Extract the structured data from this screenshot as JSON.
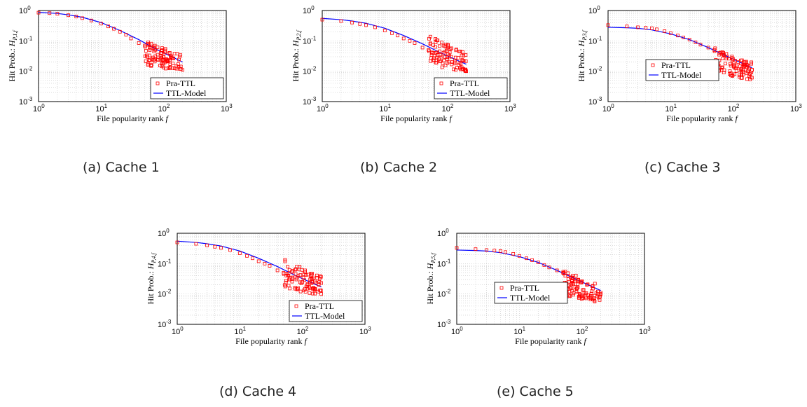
{
  "common": {
    "xlabel": "File popularity rank",
    "xlabel_var": "f",
    "ylabel_prefix": "Hit Prob.:",
    "ylabel_var": "H",
    "x_ticks": [
      {
        "base": "10",
        "exp": "0"
      },
      {
        "base": "10",
        "exp": "1"
      },
      {
        "base": "10",
        "exp": "2"
      },
      {
        "base": "10",
        "exp": "3"
      }
    ],
    "y_ticks": [
      {
        "base": "10",
        "exp": "0"
      },
      {
        "base": "10",
        "exp": "-1"
      },
      {
        "base": "10",
        "exp": "-2"
      },
      {
        "base": "10",
        "exp": "-3"
      }
    ],
    "legend": [
      "Pra-TTL",
      "TTL-Model"
    ],
    "colors": {
      "sim": "#ff0000",
      "model": "#0000ff",
      "grid": "#b8b8b8"
    }
  },
  "captions": [
    "(a) Cache 1",
    "(b) Cache 2",
    "(c) Cache 3",
    "(d) Cache 4",
    "(e) Cache 5"
  ],
  "chart_data": [
    {
      "type": "scatter",
      "ylabel_sub": "P,1,f",
      "xlim": [
        1,
        1000
      ],
      "ylim": [
        0.001,
        1
      ],
      "xscale": "log",
      "yscale": "log",
      "grid": true,
      "legend_position": "bottom-right",
      "model": {
        "x": [
          1,
          2,
          3,
          5,
          10,
          20,
          40,
          70,
          100,
          150,
          200
        ],
        "y": [
          0.87,
          0.8,
          0.72,
          0.6,
          0.4,
          0.22,
          0.11,
          0.058,
          0.04,
          0.027,
          0.02
        ]
      },
      "sim": {
        "x": [
          1,
          1.5,
          2,
          3,
          4,
          5,
          7,
          10,
          13,
          16,
          20,
          25,
          30,
          40,
          50,
          60,
          70,
          80,
          90,
          100,
          110,
          120,
          140,
          160,
          180,
          200
        ],
        "y": [
          0.85,
          0.82,
          0.78,
          0.7,
          0.63,
          0.56,
          0.47,
          0.37,
          0.3,
          0.25,
          0.2,
          0.16,
          0.12,
          0.085,
          0.07,
          0.05,
          0.045,
          0.035,
          0.04,
          0.03,
          0.025,
          0.022,
          0.018,
          0.015,
          0.012,
          0.011
        ]
      },
      "scatter": {
        "x0": 50,
        "x1": 200,
        "y_min": 0.009,
        "y_max": 0.1
      }
    },
    {
      "type": "scatter",
      "ylabel_sub": "P,2,f",
      "xlim": [
        1,
        1000
      ],
      "ylim": [
        0.001,
        1
      ],
      "xscale": "log",
      "yscale": "log",
      "grid": true,
      "legend_position": "bottom-right",
      "model": {
        "x": [
          1,
          2,
          3,
          5,
          10,
          20,
          40,
          70,
          100,
          150,
          200
        ],
        "y": [
          0.55,
          0.5,
          0.45,
          0.38,
          0.26,
          0.15,
          0.08,
          0.045,
          0.032,
          0.022,
          0.017
        ]
      },
      "sim": {
        "x": [
          1,
          2,
          3,
          4,
          5,
          7,
          10,
          13,
          16,
          20,
          25,
          30,
          40,
          50,
          60,
          70,
          80,
          100,
          120,
          150,
          180,
          200
        ],
        "y": [
          0.5,
          0.45,
          0.4,
          0.36,
          0.33,
          0.28,
          0.22,
          0.18,
          0.15,
          0.12,
          0.1,
          0.085,
          0.06,
          0.05,
          0.04,
          0.035,
          0.03,
          0.025,
          0.02,
          0.016,
          0.012,
          0.01
        ]
      },
      "scatter": {
        "x0": 50,
        "x1": 200,
        "y_min": 0.008,
        "y_max": 0.15
      }
    },
    {
      "type": "scatter",
      "ylabel_sub": "P,3,f",
      "xlim": [
        1,
        1000
      ],
      "ylim": [
        0.001,
        1
      ],
      "xscale": "log",
      "yscale": "log",
      "grid": true,
      "legend_position": "center-left",
      "model": {
        "x": [
          1,
          2,
          3,
          5,
          10,
          20,
          40,
          70,
          100,
          150,
          200
        ],
        "y": [
          0.28,
          0.27,
          0.26,
          0.23,
          0.17,
          0.11,
          0.06,
          0.035,
          0.025,
          0.017,
          0.013
        ]
      },
      "sim": {
        "x": [
          1,
          2,
          3,
          4,
          5,
          6,
          8,
          10,
          13,
          16,
          20,
          25,
          30,
          40,
          50,
          60,
          70,
          80,
          100,
          120,
          150,
          180,
          200
        ],
        "y": [
          0.33,
          0.3,
          0.28,
          0.27,
          0.26,
          0.24,
          0.21,
          0.18,
          0.15,
          0.13,
          0.11,
          0.09,
          0.075,
          0.06,
          0.05,
          0.04,
          0.035,
          0.03,
          0.025,
          0.02,
          0.015,
          0.012,
          0.011
        ]
      },
      "scatter": {
        "x0": 50,
        "x1": 200,
        "y_min": 0.005,
        "y_max": 0.06
      }
    },
    {
      "type": "scatter",
      "ylabel_sub": "P,4,f",
      "xlim": [
        1,
        1000
      ],
      "ylim": [
        0.001,
        1
      ],
      "xscale": "log",
      "yscale": "log",
      "grid": true,
      "legend_position": "bottom-right",
      "model": {
        "x": [
          1,
          2,
          3,
          5,
          10,
          20,
          40,
          70,
          100,
          150,
          200
        ],
        "y": [
          0.55,
          0.5,
          0.45,
          0.38,
          0.26,
          0.15,
          0.08,
          0.045,
          0.032,
          0.022,
          0.017
        ]
      },
      "sim": {
        "x": [
          1,
          2,
          3,
          4,
          5,
          7,
          10,
          13,
          16,
          20,
          25,
          30,
          40,
          50,
          60,
          70,
          80,
          100,
          120,
          150,
          180,
          200
        ],
        "y": [
          0.5,
          0.45,
          0.4,
          0.36,
          0.33,
          0.28,
          0.22,
          0.18,
          0.15,
          0.12,
          0.1,
          0.085,
          0.06,
          0.05,
          0.04,
          0.035,
          0.03,
          0.025,
          0.02,
          0.016,
          0.012,
          0.01
        ]
      },
      "scatter": {
        "x0": 50,
        "x1": 200,
        "y_min": 0.008,
        "y_max": 0.15
      }
    },
    {
      "type": "scatter",
      "ylabel_sub": "P,5,f",
      "xlim": [
        1,
        1000
      ],
      "ylim": [
        0.001,
        1
      ],
      "xscale": "log",
      "yscale": "log",
      "grid": true,
      "legend_position": "center-left",
      "model": {
        "x": [
          1,
          2,
          3,
          5,
          10,
          20,
          40,
          70,
          100,
          150,
          200
        ],
        "y": [
          0.28,
          0.27,
          0.26,
          0.23,
          0.17,
          0.11,
          0.06,
          0.035,
          0.025,
          0.017,
          0.013
        ]
      },
      "sim": {
        "x": [
          1,
          2,
          3,
          4,
          5,
          6,
          8,
          10,
          13,
          16,
          20,
          25,
          30,
          40,
          50,
          60,
          70,
          80,
          100,
          120,
          150,
          180,
          200
        ],
        "y": [
          0.33,
          0.3,
          0.28,
          0.27,
          0.26,
          0.24,
          0.21,
          0.18,
          0.15,
          0.13,
          0.11,
          0.09,
          0.075,
          0.06,
          0.05,
          0.04,
          0.035,
          0.03,
          0.025,
          0.02,
          0.015,
          0.012,
          0.011
        ]
      },
      "scatter": {
        "x0": 50,
        "x1": 200,
        "y_min": 0.005,
        "y_max": 0.06
      }
    }
  ]
}
